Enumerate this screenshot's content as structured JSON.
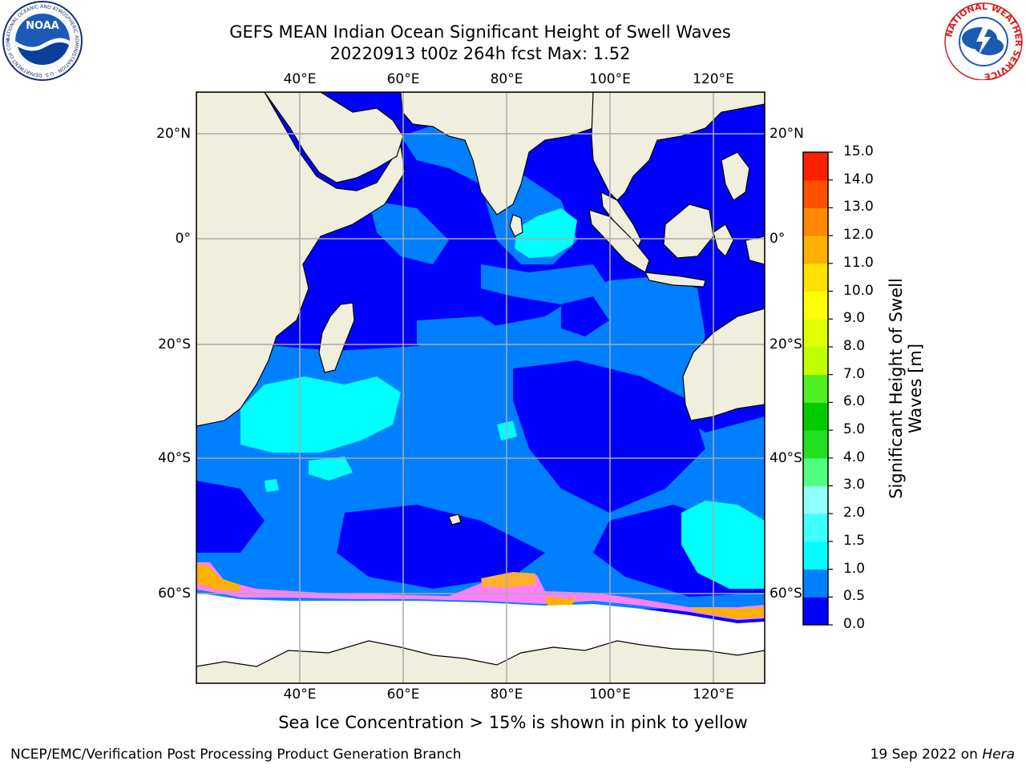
{
  "title": {
    "line1": "GEFS MEAN Indian Ocean Significant Height of Swell Waves",
    "line2": "20220913 t00z 264h fcst   Max: 1.52"
  },
  "map": {
    "lon_labels": [
      "40°E",
      "60°E",
      "80°E",
      "100°E",
      "120°E"
    ],
    "lat_labels": [
      "20°N",
      "0°",
      "20°S",
      "40°S",
      "60°S"
    ],
    "colors": {
      "ocean_low": "#0000ff",
      "ocean_mid": "#0080ff",
      "ocean_high": "#00ffff",
      "land": "#f0eedd",
      "ice": "#ffffff"
    }
  },
  "colorbar": {
    "label_line1": "Significant Height of Swell",
    "label_line2": "Waves [m]",
    "ticks": [
      "0.0",
      "0.5",
      "1.0",
      "1.5",
      "2.0",
      "3.0",
      "4.0",
      "5.0",
      "6.0",
      "7.0",
      "8.0",
      "9.0",
      "10.0",
      "11.0",
      "12.0",
      "13.0",
      "14.0",
      "15.0"
    ],
    "colors": [
      "#0000ff",
      "#0080ff",
      "#00ffff",
      "#40ffff",
      "#90ffff",
      "#50ff80",
      "#20e020",
      "#00cc00",
      "#50f020",
      "#c0ff00",
      "#e0ff00",
      "#ffff00",
      "#ffe000",
      "#ffb000",
      "#ff8800",
      "#ff5000",
      "#ff2000"
    ]
  },
  "caption": "Sea Ice Concentration > 15% is shown in pink to yellow",
  "footer": {
    "left": "NCEP/EMC/Verification Post Processing Product Generation Branch",
    "right_prefix": "19 Sep 2022 on ",
    "right_host": "Hera"
  },
  "logos": {
    "left_text": "NOAA",
    "left_ring": "NATIONAL OCEANIC AND ATMOSPHERIC ADMINISTRATION · U.S. DEPARTMENT OF COMMERCE",
    "right_ring": "NATIONAL WEATHER SERVICE"
  }
}
